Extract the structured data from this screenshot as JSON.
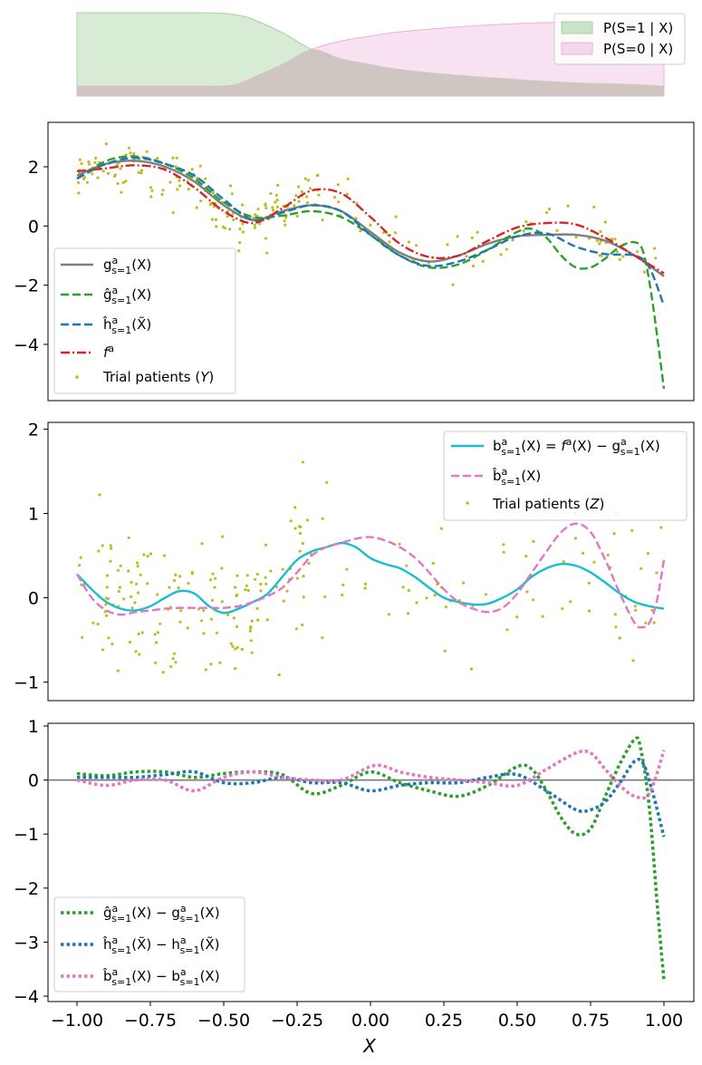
{
  "colors": {
    "gray": "#7f7f7f",
    "green": "#2ca02c",
    "blue": "#1f77b4",
    "red": "#d62728",
    "olive": "#bcbd22",
    "cyan": "#17becf",
    "pink": "#e377c2",
    "green_fill": "#c8e3c5",
    "pink_fill": "#f5d6ea",
    "overlap_fill": "#cdc4bf"
  },
  "xlabel": "X",
  "chart_data": [
    {
      "id": "propensity",
      "type": "area",
      "xlim": [
        -1.0,
        1.0
      ],
      "ylim": [
        0,
        1
      ],
      "axes_visible": false,
      "legend": {
        "placement": "top-right"
      },
      "series": [
        {
          "name": "P(S=1 | X)",
          "x": [
            -1.0,
            -0.6,
            -0.5,
            -0.45,
            -0.4,
            -0.3,
            -0.2,
            -0.1,
            0.0,
            0.1,
            0.3,
            0.5,
            0.7,
            0.9,
            1.0
          ],
          "values": [
            1.0,
            1.0,
            0.99,
            0.97,
            0.92,
            0.76,
            0.56,
            0.45,
            0.38,
            0.32,
            0.25,
            0.2,
            0.16,
            0.14,
            0.12
          ]
        },
        {
          "name": "P(S=0 | X)",
          "x": [
            -1.0,
            -0.6,
            -0.5,
            -0.45,
            -0.4,
            -0.3,
            -0.2,
            -0.1,
            0.0,
            0.1,
            0.3,
            0.5,
            0.7,
            0.9,
            1.0
          ],
          "values": [
            0.12,
            0.12,
            0.12,
            0.15,
            0.22,
            0.38,
            0.56,
            0.66,
            0.72,
            0.77,
            0.83,
            0.87,
            0.89,
            0.9,
            0.92
          ]
        }
      ]
    },
    {
      "id": "outcome",
      "type": "line",
      "xlim": [
        -1.05,
        1.05
      ],
      "ylim": [
        -5.9,
        3.5
      ],
      "yticks": [
        -4,
        -2,
        0,
        2
      ],
      "legend": {
        "placement": "bottom-left"
      },
      "series": [
        {
          "name": "g^a_{s=1}(X)",
          "style": "solid",
          "x": [
            -1.0,
            -0.9,
            -0.8,
            -0.7,
            -0.6,
            -0.5,
            -0.4,
            -0.3,
            -0.2,
            -0.1,
            0.0,
            0.1,
            0.2,
            0.3,
            0.4,
            0.5,
            0.6,
            0.7,
            0.8,
            0.9,
            1.0
          ],
          "values": [
            1.7,
            2.1,
            2.2,
            2.0,
            1.5,
            0.7,
            0.2,
            0.5,
            0.7,
            0.5,
            -0.2,
            -0.9,
            -1.2,
            -1.0,
            -0.6,
            -0.35,
            -0.3,
            -0.3,
            -0.5,
            -1.0,
            -1.7
          ]
        },
        {
          "name": "ĝ^a_{s=1}(X)",
          "style": "dashed",
          "x": [
            -1.0,
            -0.9,
            -0.8,
            -0.7,
            -0.6,
            -0.5,
            -0.4,
            -0.3,
            -0.2,
            -0.1,
            0.0,
            0.1,
            0.2,
            0.3,
            0.4,
            0.5,
            0.55,
            0.6,
            0.65,
            0.7,
            0.75,
            0.8,
            0.85,
            0.9,
            0.93,
            0.96,
            1.0
          ],
          "values": [
            1.6,
            2.2,
            2.35,
            2.1,
            1.6,
            0.8,
            0.3,
            0.35,
            0.5,
            0.3,
            -0.3,
            -1.0,
            -1.4,
            -1.3,
            -0.8,
            -0.2,
            -0.1,
            -0.4,
            -1.0,
            -1.4,
            -1.4,
            -1.1,
            -0.7,
            -0.55,
            -0.9,
            -2.5,
            -5.5
          ]
        },
        {
          "name": "ĥ^a_{s=1}(X̃)",
          "style": "dashed",
          "x": [
            -1.0,
            -0.9,
            -0.8,
            -0.7,
            -0.6,
            -0.5,
            -0.4,
            -0.3,
            -0.2,
            -0.1,
            0.0,
            0.1,
            0.2,
            0.3,
            0.4,
            0.5,
            0.6,
            0.7,
            0.8,
            0.9,
            0.95,
            1.0
          ],
          "values": [
            1.6,
            2.1,
            2.3,
            2.1,
            1.7,
            0.9,
            0.2,
            0.45,
            0.7,
            0.5,
            -0.3,
            -1.0,
            -1.35,
            -1.2,
            -0.8,
            -0.35,
            -0.25,
            -0.7,
            -0.95,
            -1.0,
            -1.4,
            -2.7
          ]
        },
        {
          "name": "f^a(X)",
          "style": "dashdot",
          "x": [
            -1.0,
            -0.9,
            -0.8,
            -0.7,
            -0.6,
            -0.5,
            -0.4,
            -0.3,
            -0.2,
            -0.1,
            0.0,
            0.1,
            0.2,
            0.3,
            0.4,
            0.5,
            0.6,
            0.7,
            0.8,
            0.9,
            1.0
          ],
          "values": [
            1.85,
            1.95,
            2.05,
            1.9,
            1.3,
            0.5,
            0.1,
            0.6,
            1.2,
            1.1,
            0.3,
            -0.6,
            -1.05,
            -1.0,
            -0.5,
            -0.05,
            0.1,
            0.05,
            -0.4,
            -1.0,
            -1.6
          ]
        },
        {
          "name": "Trial patients (Y)",
          "style": "scatter",
          "x": [],
          "values": []
        }
      ]
    },
    {
      "id": "bias",
      "type": "line",
      "xlim": [
        -1.05,
        1.05
      ],
      "ylim": [
        -1.22,
        2.08
      ],
      "yticks": [
        -1,
        0,
        1,
        2
      ],
      "legend": {
        "placement": "top-right"
      },
      "series": [
        {
          "name": "b^a_{s=1}(X) = f^a(X) − g^a_{s=1}(X)",
          "style": "solid",
          "x": [
            -1.0,
            -0.95,
            -0.9,
            -0.85,
            -0.8,
            -0.75,
            -0.7,
            -0.65,
            -0.6,
            -0.55,
            -0.5,
            -0.45,
            -0.4,
            -0.35,
            -0.3,
            -0.25,
            -0.2,
            -0.15,
            -0.1,
            -0.05,
            0.0,
            0.05,
            0.1,
            0.15,
            0.2,
            0.25,
            0.3,
            0.35,
            0.4,
            0.45,
            0.5,
            0.55,
            0.6,
            0.65,
            0.7,
            0.75,
            0.8,
            0.85,
            0.9,
            0.95,
            1.0
          ],
          "values": [
            0.28,
            0.1,
            -0.05,
            -0.13,
            -0.15,
            -0.1,
            0.0,
            0.08,
            0.05,
            -0.1,
            -0.18,
            -0.13,
            -0.05,
            0.05,
            0.25,
            0.45,
            0.55,
            0.6,
            0.65,
            0.6,
            0.47,
            0.4,
            0.35,
            0.25,
            0.12,
            0.0,
            -0.05,
            -0.08,
            -0.07,
            0.0,
            0.1,
            0.25,
            0.35,
            0.4,
            0.38,
            0.3,
            0.18,
            0.05,
            -0.05,
            -0.1,
            -0.13
          ]
        },
        {
          "name": "b̂^a_{s=1}(X)",
          "style": "dashed",
          "x": [
            -1.0,
            -0.95,
            -0.9,
            -0.85,
            -0.8,
            -0.75,
            -0.7,
            -0.65,
            -0.6,
            -0.55,
            -0.5,
            -0.45,
            -0.4,
            -0.35,
            -0.3,
            -0.25,
            -0.2,
            -0.15,
            -0.1,
            -0.05,
            0.0,
            0.05,
            0.1,
            0.15,
            0.2,
            0.25,
            0.3,
            0.35,
            0.4,
            0.45,
            0.5,
            0.55,
            0.6,
            0.65,
            0.7,
            0.75,
            0.8,
            0.85,
            0.9,
            0.925,
            0.95,
            0.975,
            1.0
          ],
          "values": [
            0.28,
            0.0,
            -0.15,
            -0.2,
            -0.17,
            -0.15,
            -0.13,
            -0.12,
            -0.12,
            -0.12,
            -0.12,
            -0.1,
            -0.05,
            0.02,
            0.12,
            0.3,
            0.5,
            0.6,
            0.65,
            0.7,
            0.72,
            0.68,
            0.6,
            0.48,
            0.3,
            0.1,
            -0.05,
            -0.13,
            -0.17,
            -0.12,
            0.05,
            0.3,
            0.55,
            0.78,
            0.88,
            0.78,
            0.45,
            0.05,
            -0.3,
            -0.35,
            -0.3,
            -0.05,
            0.45
          ]
        },
        {
          "name": "Trial patients (Z)",
          "style": "scatter",
          "x": [],
          "values": []
        }
      ]
    },
    {
      "id": "errors",
      "type": "line",
      "xlim": [
        -1.05,
        1.05
      ],
      "ylim": [
        -4.1,
        1.05
      ],
      "yticks": [
        -4,
        -3,
        -2,
        -1,
        0,
        1
      ],
      "xticks": [
        -1.0,
        -0.75,
        -0.5,
        -0.25,
        0.0,
        0.25,
        0.5,
        0.75,
        1.0
      ],
      "xticklabels": [
        "−1.00",
        "−0.75",
        "−0.50",
        "−0.25",
        "0.00",
        "0.25",
        "0.50",
        "0.75",
        "1.00"
      ],
      "xlabel": "X",
      "hline": 0,
      "legend": {
        "placement": "bottom-left"
      },
      "series": [
        {
          "name": "ĝ^a_{s=1}(X) − g^a_{s=1}(X)",
          "style": "dotted",
          "x": [
            -1.0,
            -0.9,
            -0.8,
            -0.7,
            -0.6,
            -0.5,
            -0.4,
            -0.3,
            -0.2,
            -0.1,
            0.0,
            0.1,
            0.2,
            0.3,
            0.4,
            0.5,
            0.55,
            0.6,
            0.65,
            0.7,
            0.75,
            0.8,
            0.85,
            0.9,
            0.92,
            0.95,
            0.98,
            1.0
          ],
          "values": [
            0.12,
            0.08,
            0.15,
            0.15,
            0.05,
            0.12,
            0.15,
            0.1,
            -0.25,
            -0.1,
            0.15,
            -0.05,
            -0.2,
            -0.3,
            -0.1,
            0.25,
            0.2,
            -0.2,
            -0.7,
            -1.0,
            -0.9,
            -0.3,
            0.3,
            0.75,
            0.6,
            -0.5,
            -2.5,
            -3.7
          ]
        },
        {
          "name": "ĥ^a_{s=1}(X̃) − h^a_{s=1}(X̃)",
          "style": "dotted",
          "x": [
            -1.0,
            -0.9,
            -0.8,
            -0.7,
            -0.6,
            -0.5,
            -0.4,
            -0.3,
            -0.2,
            -0.1,
            0.0,
            0.1,
            0.2,
            0.3,
            0.4,
            0.5,
            0.6,
            0.7,
            0.75,
            0.8,
            0.85,
            0.9,
            0.93,
            0.96,
            1.0
          ],
          "values": [
            0.05,
            0.05,
            0.05,
            0.1,
            0.15,
            -0.05,
            -0.05,
            0.05,
            -0.05,
            -0.05,
            -0.2,
            -0.1,
            -0.05,
            -0.05,
            0.05,
            0.1,
            -0.2,
            -0.55,
            -0.55,
            -0.4,
            -0.05,
            0.35,
            0.3,
            -0.2,
            -1.05
          ]
        },
        {
          "name": "b̂^a_{s=1}(X) − b^a_{s=1}(X)",
          "style": "dotted",
          "x": [
            -1.0,
            -0.9,
            -0.8,
            -0.7,
            -0.6,
            -0.5,
            -0.4,
            -0.3,
            -0.2,
            -0.1,
            0.0,
            0.05,
            0.1,
            0.2,
            0.3,
            0.4,
            0.5,
            0.6,
            0.7,
            0.75,
            0.8,
            0.85,
            0.9,
            0.95,
            1.0
          ],
          "values": [
            0.0,
            -0.1,
            0.0,
            0.0,
            -0.2,
            0.05,
            0.15,
            0.05,
            0.0,
            0.0,
            0.25,
            0.25,
            0.15,
            0.05,
            0.0,
            -0.05,
            -0.1,
            0.2,
            0.5,
            0.5,
            0.2,
            -0.1,
            -0.3,
            -0.25,
            0.55
          ]
        }
      ]
    }
  ],
  "legends": {
    "propensity": [
      "P(S=1 | X)",
      "P(S=0 | X)"
    ],
    "outcome": {
      "g": [
        "g",
        "a",
        "s=1",
        "(X)"
      ],
      "ghat": [
        "ĝ",
        "a",
        "s=1",
        "(X)"
      ],
      "hhat": [
        "ĥ",
        "a",
        "s=1",
        "(X̃)"
      ],
      "f": [
        "f",
        "a",
        "(X)"
      ],
      "trial": [
        "Trial patients (",
        "Y",
        ")"
      ]
    },
    "bias": {
      "b": [
        "b",
        "a",
        "s=1",
        "(X) = ",
        "f",
        "a",
        "(X) − ",
        "g",
        "a",
        "s=1",
        "(X)"
      ],
      "bhat": [
        "b̂",
        "a",
        "s=1",
        "(X)"
      ],
      "trial": [
        "Trial patients (",
        "Z",
        ")"
      ]
    },
    "errors": {
      "g": [
        "ĝ",
        "a",
        "s=1",
        "(X) − ",
        "g",
        "a",
        "s=1",
        "(X)"
      ],
      "h": [
        "ĥ",
        "a",
        "s=1",
        "(X̃) − ",
        "h",
        "a",
        "s=1",
        "(X̃)"
      ],
      "b": [
        "b̂",
        "a",
        "s=1",
        "(X) − ",
        "b",
        "a",
        "s=1",
        "(X)"
      ]
    }
  }
}
